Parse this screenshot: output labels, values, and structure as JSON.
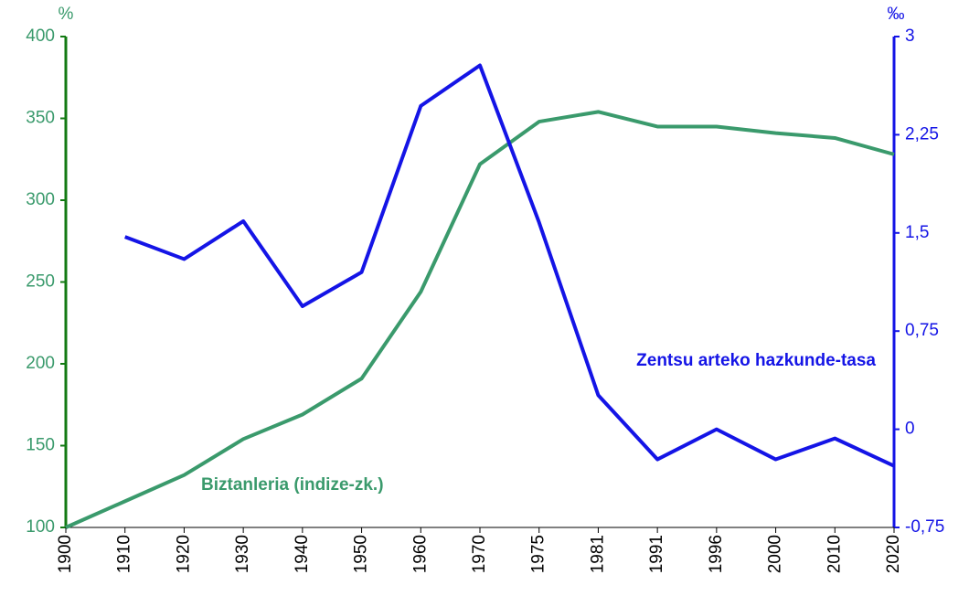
{
  "chart_data": {
    "type": "line",
    "ylabel": "%",
    "y2label": "‰",
    "categories": [
      "1900",
      "1910",
      "1920",
      "1930",
      "1940",
      "1950",
      "1960",
      "1970",
      "1975",
      "1981",
      "1991",
      "1996",
      "2000",
      "2010",
      "2020"
    ],
    "series": [
      {
        "name": "Biztanleria (indize-zk.)",
        "color": "#3a9a6c",
        "values": [
          100,
          116,
          132,
          154,
          169,
          191,
          244,
          322,
          348,
          354,
          345,
          345,
          341,
          338,
          328
        ]
      },
      {
        "name": "Zentsu arteko hazkunde-tasa",
        "color": "#1414e6",
        "axis": "y2",
        "values": [
          null,
          1.47,
          1.3,
          1.59,
          0.94,
          1.2,
          2.47,
          2.78,
          1.58,
          0.26,
          -0.23,
          0.0,
          -0.23,
          -0.07,
          -0.28
        ]
      }
    ],
    "ylim": [
      100,
      400
    ],
    "yticks": [
      100,
      150,
      200,
      250,
      300,
      350,
      400
    ],
    "y2lim": [
      -0.75,
      3
    ],
    "y2ticks": [
      {
        "value": -0.75,
        "label": "-0,75"
      },
      0,
      {
        "value": 0.75,
        "label": "0,75"
      },
      {
        "value": 1.5,
        "label": "1,5"
      },
      {
        "value": 2.25,
        "label": "2,25"
      },
      3
    ],
    "left_axis_color": "#127a12",
    "right_axis_color": "#1414e6"
  }
}
